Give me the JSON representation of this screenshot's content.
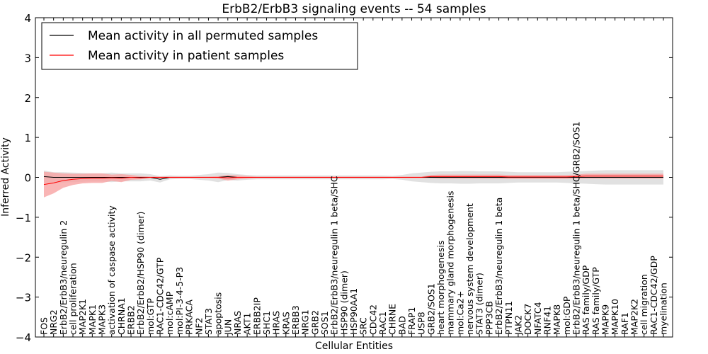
{
  "chart_data": {
    "type": "line",
    "title": "ErbB2/ErbB3 signaling events -- 54 samples",
    "xlabel": "Cellular Entities",
    "ylabel": "Inferred Activity",
    "ylim": [
      -4,
      4
    ],
    "yticks": [
      "−4",
      "−3",
      "−2",
      "−1",
      "0",
      "1",
      "2",
      "3",
      "4"
    ],
    "ytick_values": [
      -4,
      -3,
      -2,
      -1,
      0,
      1,
      2,
      3,
      4
    ],
    "legend_position": "top-left",
    "categories": [
      "FOS",
      "NRG2",
      "ErbB2/ErbB3/neuregulin 2",
      "cell proliferation",
      "MAP2K1",
      "MAPK1",
      "MAPK3",
      "activation of caspase activity",
      "CHRNA1",
      "ERBB2",
      "ErbB2/ErbB2/HSP90 (dimer)",
      "mol:GTP",
      "RAC1-CDC42/GTP",
      "mol:cAMP",
      "mol:PI-3-4-5-P3",
      "PRKACA",
      "NF2",
      "STAT3",
      "apoptosis",
      "JUN",
      "NRAS",
      "AKT1",
      "ERBB2IP",
      "SHC1",
      "HRAS",
      "KRAS",
      "ERBB3",
      "NRG1",
      "GRB2",
      "SOS1",
      "ErbB2/ErbB3/neuregulin 1 beta/SHC",
      "HSP90 (dimer)",
      "HSP90AA1",
      "SRC",
      "CDC42",
      "RAC1",
      "CHRNE",
      "BAD",
      "FRAP1",
      "USP8",
      "GRB2/SOS1",
      "heart morphogenesis",
      "mammary gland morphogenesis",
      "mol:Ca2+",
      "nervous system development",
      "STAT3 (dimer)",
      "PPP3CB",
      "ErbB2/ErbB3/neuregulin 1 beta",
      "PTPN11",
      "JAK2",
      "DOCK7",
      "NFATC4",
      "RNF41",
      "MAPK8",
      "mol:GDP",
      "ErbB2/ErbB3/neuregulin 1 beta/SHC/GRB2/SOS1",
      "RAS family/GDP",
      "RAS family/GTP",
      "MAPK9",
      "MAPK10",
      "RAF1",
      "MAP2K2",
      "cell migration",
      "RAC1-CDC42/GDP",
      "myelination"
    ],
    "series": [
      {
        "name": "Mean activity in all permuted samples",
        "color": "#000000",
        "band_color": "#c8c8c8",
        "values": [
          0.02,
          0.0,
          0.0,
          0.0,
          0.0,
          0.0,
          0.0,
          0.0,
          0.0,
          0.0,
          0.0,
          0.0,
          -0.05,
          0.0,
          0.0,
          0.0,
          0.0,
          0.0,
          0.0,
          0.02,
          0.0,
          0.0,
          0.0,
          0.0,
          0.0,
          0.0,
          0.0,
          0.0,
          0.0,
          0.0,
          0.0,
          0.0,
          0.0,
          0.0,
          0.0,
          0.0,
          0.0,
          0.0,
          0.0,
          0.0,
          0.0,
          0.0,
          0.0,
          0.0,
          0.0,
          0.0,
          0.0,
          0.0,
          0.0,
          0.0,
          0.0,
          0.0,
          0.0,
          0.0,
          0.0,
          0.0,
          0.0,
          0.0,
          0.0,
          0.0,
          0.0,
          0.0,
          0.0,
          0.0,
          0.0
        ],
        "band": [
          0.15,
          0.13,
          0.13,
          0.12,
          0.11,
          0.1,
          0.1,
          0.12,
          0.1,
          0.1,
          0.1,
          0.08,
          0.08,
          0.05,
          0.04,
          0.04,
          0.06,
          0.08,
          0.12,
          0.09,
          0.08,
          0.06,
          0.05,
          0.05,
          0.05,
          0.05,
          0.05,
          0.05,
          0.05,
          0.05,
          0.05,
          0.05,
          0.05,
          0.05,
          0.05,
          0.05,
          0.04,
          0.06,
          0.1,
          0.12,
          0.14,
          0.15,
          0.15,
          0.16,
          0.16,
          0.15,
          0.15,
          0.15,
          0.14,
          0.13,
          0.13,
          0.13,
          0.13,
          0.13,
          0.14,
          0.15,
          0.16,
          0.17,
          0.18,
          0.18,
          0.18,
          0.18,
          0.18,
          0.18,
          0.18
        ]
      },
      {
        "name": "Mean activity in patient samples",
        "color": "#ff0000",
        "band_color": "#f7a3a3",
        "values": [
          -0.18,
          -0.14,
          -0.08,
          -0.05,
          -0.03,
          -0.02,
          -0.02,
          -0.01,
          -0.02,
          0.0,
          -0.01,
          0.0,
          0.0,
          0.0,
          0.0,
          0.0,
          0.0,
          0.0,
          0.0,
          -0.01,
          0.0,
          0.0,
          0.0,
          0.0,
          0.0,
          0.0,
          0.0,
          0.0,
          0.0,
          0.0,
          0.0,
          0.0,
          0.0,
          0.0,
          0.0,
          0.0,
          0.0,
          0.0,
          0.0,
          0.0,
          0.02,
          0.02,
          0.02,
          0.02,
          0.02,
          0.02,
          0.02,
          0.02,
          0.01,
          0.01,
          0.01,
          0.01,
          0.01,
          0.01,
          0.01,
          0.02,
          0.03,
          0.03,
          0.03,
          0.03,
          0.03,
          0.03,
          0.03,
          0.03,
          0.03
        ],
        "band": [
          0.32,
          0.26,
          0.18,
          0.14,
          0.12,
          0.12,
          0.12,
          0.08,
          0.1,
          0.06,
          0.04,
          0.02,
          0.02,
          0.02,
          0.02,
          0.02,
          0.02,
          0.02,
          0.03,
          0.07,
          0.05,
          0.03,
          0.02,
          0.02,
          0.02,
          0.02,
          0.02,
          0.02,
          0.02,
          0.02,
          0.02,
          0.02,
          0.02,
          0.02,
          0.02,
          0.02,
          0.02,
          0.02,
          0.02,
          0.02,
          0.04,
          0.05,
          0.05,
          0.05,
          0.05,
          0.05,
          0.05,
          0.05,
          0.05,
          0.05,
          0.05,
          0.05,
          0.05,
          0.05,
          0.05,
          0.05,
          0.06,
          0.06,
          0.06,
          0.06,
          0.06,
          0.06,
          0.06,
          0.06,
          0.06
        ]
      }
    ]
  }
}
